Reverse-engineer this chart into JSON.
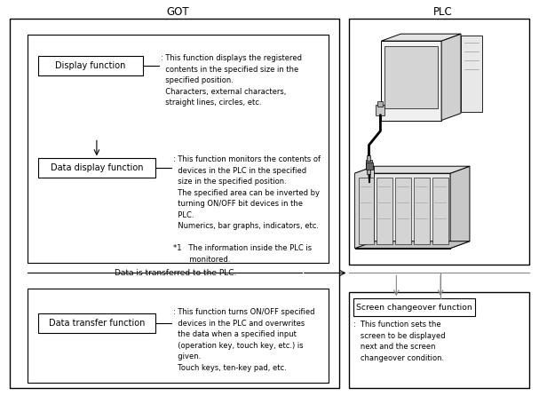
{
  "title_got": "GOT",
  "title_plc": "PLC",
  "bg_color": "#ffffff",
  "text_color": "#000000",
  "display_func_text": "Display function",
  "data_display_func_text": "Data display function",
  "data_transfer_func_text": "Data transfer function",
  "screen_changeover_func_text": "Screen changeover function",
  "display_func_desc": ": This function displays the registered\n  contents in the specified size in the\n  specified position.\n  Characters, external characters,\n  straight lines, circles, etc.",
  "data_display_func_desc": ": This function monitors the contents of\n  devices in the PLC in the specified\n  size in the specified position.\n  The specified area can be inverted by\n  turning ON/OFF bit devices in the\n  PLC.\n  Numerics, bar graphs, indicators, etc.\n\n*1   The information inside the PLC is\n       monitored.",
  "data_transfer_func_desc": ": This function turns ON/OFF specified\n  devices in the PLC and overwrites\n  the data when a specified input\n  (operation key, touch key, etc.) is\n  given.\n  Touch keys, ten-key pad, etc.",
  "screen_changeover_func_desc": ":  This function sets the\n   screen to be displayed\n   next and the screen\n   changeover condition.",
  "data_transfer_label": "Data is transferred to the PLC.",
  "font_size_title": 8.5,
  "font_size_desc": 6.0,
  "font_size_box": 7.0,
  "gray_light": "#e8e8e8",
  "gray_mid": "#c8c8c8",
  "gray_dark": "#999999",
  "gray_arrow": "#aaaaaa"
}
